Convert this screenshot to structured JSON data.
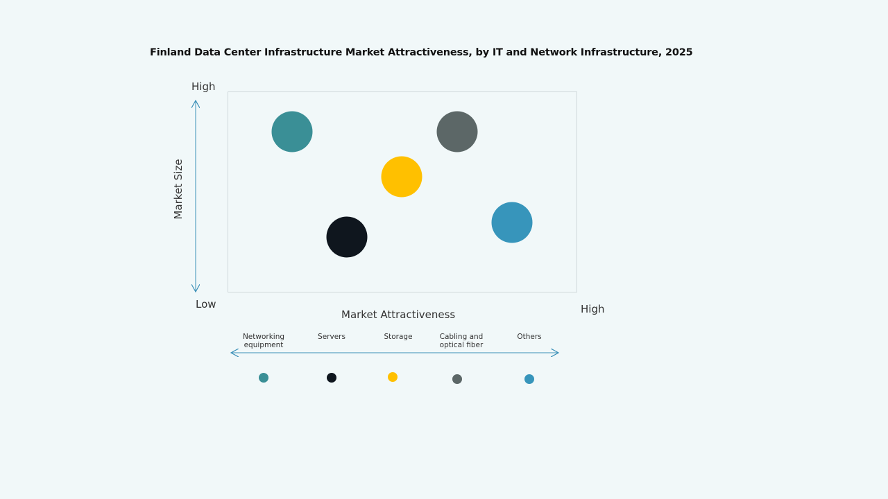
{
  "title": "Finland Data Center Infrastructure  Market Attractiveness,  by IT and Network Infrastructure,  2025",
  "y_axis": {
    "label": "Market Size",
    "high": "High",
    "low": "Low"
  },
  "x_axis": {
    "label": "Market Attractiveness",
    "high": "High"
  },
  "items": [
    {
      "label": "Networking equipment",
      "color": "#3a8f96"
    },
    {
      "label": "Servers",
      "color": "#0f161e"
    },
    {
      "label": "Storage",
      "color": "#ffc000"
    },
    {
      "label": "Cabling and optical fiber",
      "color": "#5c6767"
    },
    {
      "label": "Others",
      "color": "#3795bb"
    }
  ]
}
